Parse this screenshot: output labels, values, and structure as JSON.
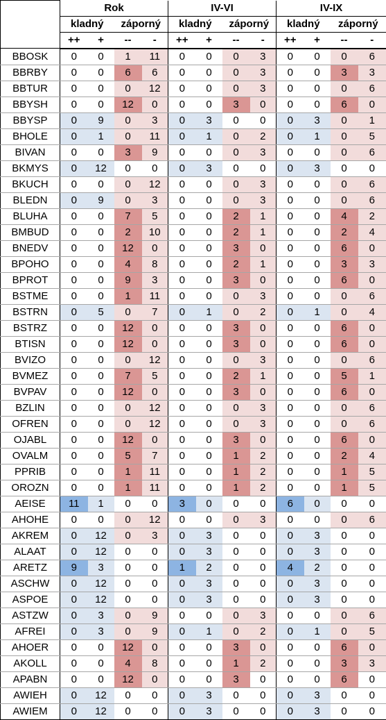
{
  "colors": {
    "blue1": "#dbe5f1",
    "blue2": "#b9cde5",
    "blue3": "#8db4e2",
    "pink1": "#f2dcdb",
    "pink2": "#e6b9b8",
    "pink3": "#da9694",
    "white": "#ffffff"
  },
  "header": {
    "groups": [
      "Rok",
      "IV-VI",
      "IV-IX"
    ],
    "subgroups": [
      "kladný",
      "záporný"
    ],
    "cols": [
      "++",
      "+",
      "--",
      "-"
    ]
  },
  "rows": [
    {
      "name": "BBOSK",
      "v": [
        0,
        0,
        1,
        11,
        0,
        0,
        0,
        3,
        0,
        0,
        0,
        6
      ]
    },
    {
      "name": "BBRBY",
      "v": [
        0,
        0,
        6,
        6,
        0,
        0,
        0,
        3,
        0,
        0,
        3,
        3
      ]
    },
    {
      "name": "BBTUR",
      "v": [
        0,
        0,
        0,
        12,
        0,
        0,
        0,
        3,
        0,
        0,
        0,
        6
      ]
    },
    {
      "name": "BBYSH",
      "v": [
        0,
        0,
        12,
        0,
        0,
        0,
        3,
        0,
        0,
        0,
        6,
        0
      ]
    },
    {
      "name": "BBYSP",
      "v": [
        0,
        9,
        0,
        3,
        0,
        3,
        0,
        0,
        0,
        3,
        0,
        1
      ]
    },
    {
      "name": "BHOLE",
      "v": [
        0,
        1,
        0,
        11,
        0,
        1,
        0,
        2,
        0,
        1,
        0,
        5
      ]
    },
    {
      "name": "BIVAN",
      "v": [
        0,
        0,
        3,
        9,
        0,
        0,
        0,
        3,
        0,
        0,
        0,
        6
      ]
    },
    {
      "name": "BKMYS",
      "v": [
        0,
        12,
        0,
        0,
        0,
        3,
        0,
        0,
        0,
        3,
        0,
        0
      ]
    },
    {
      "name": "BKUCH",
      "v": [
        0,
        0,
        0,
        12,
        0,
        0,
        0,
        3,
        0,
        0,
        0,
        6
      ]
    },
    {
      "name": "BLEDN",
      "v": [
        0,
        9,
        0,
        3,
        0,
        0,
        0,
        3,
        0,
        0,
        0,
        6
      ]
    },
    {
      "name": "BLUHA",
      "v": [
        0,
        0,
        7,
        5,
        0,
        0,
        2,
        1,
        0,
        0,
        4,
        2
      ]
    },
    {
      "name": "BMBUD",
      "v": [
        0,
        0,
        2,
        10,
        0,
        0,
        2,
        1,
        0,
        0,
        2,
        4
      ]
    },
    {
      "name": "BNEDV",
      "v": [
        0,
        0,
        12,
        0,
        0,
        0,
        3,
        0,
        0,
        0,
        6,
        0
      ]
    },
    {
      "name": "BPOHO",
      "v": [
        0,
        0,
        4,
        8,
        0,
        0,
        2,
        1,
        0,
        0,
        3,
        3
      ]
    },
    {
      "name": "BPROT",
      "v": [
        0,
        0,
        9,
        3,
        0,
        0,
        3,
        0,
        0,
        0,
        6,
        0
      ]
    },
    {
      "name": "BSTME",
      "v": [
        0,
        0,
        1,
        11,
        0,
        0,
        0,
        3,
        0,
        0,
        0,
        6
      ]
    },
    {
      "name": "BSTRN",
      "v": [
        0,
        5,
        0,
        7,
        0,
        1,
        0,
        2,
        0,
        1,
        0,
        4
      ]
    },
    {
      "name": "BSTRZ",
      "v": [
        0,
        0,
        12,
        0,
        0,
        0,
        3,
        0,
        0,
        0,
        6,
        0
      ]
    },
    {
      "name": "BTISN",
      "v": [
        0,
        0,
        12,
        0,
        0,
        0,
        3,
        0,
        0,
        0,
        6,
        0
      ]
    },
    {
      "name": "BVIZO",
      "v": [
        0,
        0,
        0,
        12,
        0,
        0,
        0,
        3,
        0,
        0,
        0,
        6
      ]
    },
    {
      "name": "BVMEZ",
      "v": [
        0,
        0,
        7,
        5,
        0,
        0,
        2,
        1,
        0,
        0,
        5,
        1
      ]
    },
    {
      "name": "BVPAV",
      "v": [
        0,
        0,
        12,
        0,
        0,
        0,
        3,
        0,
        0,
        0,
        6,
        0
      ]
    },
    {
      "name": "BZLIN",
      "v": [
        0,
        0,
        0,
        12,
        0,
        0,
        0,
        3,
        0,
        0,
        0,
        6
      ]
    },
    {
      "name": "OFREN",
      "v": [
        0,
        0,
        0,
        12,
        0,
        0,
        0,
        3,
        0,
        0,
        0,
        6
      ]
    },
    {
      "name": "OJABL",
      "v": [
        0,
        0,
        12,
        0,
        0,
        0,
        3,
        0,
        0,
        0,
        6,
        0
      ]
    },
    {
      "name": "OVALM",
      "v": [
        0,
        0,
        5,
        7,
        0,
        0,
        1,
        2,
        0,
        0,
        2,
        4
      ]
    },
    {
      "name": "PPRIB",
      "v": [
        0,
        0,
        1,
        11,
        0,
        0,
        1,
        2,
        0,
        0,
        1,
        5
      ]
    },
    {
      "name": "OROZN",
      "v": [
        0,
        0,
        1,
        11,
        0,
        0,
        1,
        2,
        0,
        0,
        1,
        5
      ]
    },
    {
      "name": "AEISE",
      "v": [
        11,
        1,
        0,
        0,
        3,
        0,
        0,
        0,
        6,
        0,
        0,
        0
      ]
    },
    {
      "name": "AHOHE",
      "v": [
        0,
        0,
        0,
        12,
        0,
        0,
        0,
        3,
        0,
        0,
        0,
        6
      ]
    },
    {
      "name": "AKREM",
      "v": [
        0,
        12,
        0,
        3,
        0,
        3,
        0,
        0,
        0,
        3,
        0,
        0
      ]
    },
    {
      "name": "ALAAT",
      "v": [
        0,
        12,
        0,
        0,
        0,
        3,
        0,
        0,
        0,
        3,
        0,
        0
      ]
    },
    {
      "name": "ARETZ",
      "v": [
        9,
        3,
        0,
        0,
        1,
        2,
        0,
        0,
        4,
        2,
        0,
        0
      ]
    },
    {
      "name": "ASCHW",
      "v": [
        0,
        12,
        0,
        0,
        0,
        3,
        0,
        0,
        0,
        3,
        0,
        0
      ]
    },
    {
      "name": "ASPOE",
      "v": [
        0,
        12,
        0,
        0,
        0,
        3,
        0,
        0,
        0,
        3,
        0,
        0
      ]
    },
    {
      "name": "ASTZW",
      "v": [
        0,
        3,
        0,
        9,
        0,
        0,
        0,
        3,
        0,
        0,
        0,
        6
      ]
    },
    {
      "name": "AFREI",
      "v": [
        0,
        3,
        0,
        9,
        0,
        1,
        0,
        2,
        0,
        1,
        0,
        5
      ]
    },
    {
      "name": "AHOER",
      "v": [
        0,
        0,
        12,
        0,
        0,
        0,
        3,
        0,
        0,
        0,
        6,
        0
      ]
    },
    {
      "name": "AKOLL",
      "v": [
        0,
        0,
        4,
        8,
        0,
        0,
        1,
        2,
        0,
        0,
        3,
        3
      ]
    },
    {
      "name": "APABN",
      "v": [
        0,
        0,
        12,
        0,
        0,
        0,
        3,
        0,
        0,
        0,
        6,
        0
      ]
    },
    {
      "name": "AWIEH",
      "v": [
        0,
        12,
        0,
        0,
        0,
        3,
        0,
        0,
        0,
        3,
        0,
        0
      ]
    },
    {
      "name": "AWIEM",
      "v": [
        0,
        12,
        0,
        0,
        0,
        3,
        0,
        0,
        0,
        3,
        0,
        0
      ]
    }
  ],
  "fills": {
    "BBOSK": "wwpp wwpp wwpp",
    "BBRBY": "wwPp wwpp wwPp",
    "BBTUR": "wwpp wwpp wwpp",
    "BBYSH": "wwPp wwPp wwPp",
    "BBYSP": "bbpp bbww bbpp",
    "BHOLE": "bbpp bbpp bbpp",
    "BIVAN": "wwPp wwpp wwpp",
    "BKMYS": "bbww bbww bbww",
    "BKUCH": "wwpp wwpp wwpp",
    "BLEDN": "bbpp wwpp wwpp",
    "BLUHA": "wwPp wwPp wwPp",
    "BMBUD": "wwPp wwPp wwPp",
    "BNEDV": "wwPp wwPp wwPp",
    "BPOHO": "wwPp wwPp wwPp",
    "BPROT": "wwPp wwPp wwPp",
    "BSTME": "wwPp wwpp wwpp",
    "BSTRN": "bbpp bbpp bbpp",
    "BSTRZ": "wwPp wwPp wwPp",
    "BTISN": "wwPp wwPp wwPp",
    "BVIZO": "wwpp wwpp wwpp",
    "BVMEZ": "wwPp wwPp wwPp",
    "BVPAV": "wwPp wwPp wwPp",
    "BZLIN": "wwpp wwpp wwpp",
    "OFREN": "wwpp wwpp wwpp",
    "OJABL": "wwPp wwPp wwPp",
    "OVALM": "wwPp wwPp wwPp",
    "PPRIB": "wwPp wwPp wwPp",
    "OROZN": "wwPp wwPp wwPp",
    "AEISE": "Bbww Bbww Bbww",
    "AHOHE": "wwpp wwpp wwpp",
    "AKREM": "bbpp bbww bbww",
    "ALAAT": "bbww bbww bbww",
    "ARETZ": "Bbww Bbww Bbww",
    "ASCHW": "bbww bbww bbww",
    "ASPOE": "bbww bbww bbww",
    "ASTZW": "bbpp wwpp wwpp",
    "AFREI": "bbpp bbpp bbpp",
    "AHOER": "wwPp wwPp wwPp",
    "AKOLL": "wwPp wwPp wwPp",
    "APABN": "wwPp wwPw wwPw",
    "AWIEH": "bbww bbww bbww",
    "AWIEM": "bbww bbww bbww"
  }
}
